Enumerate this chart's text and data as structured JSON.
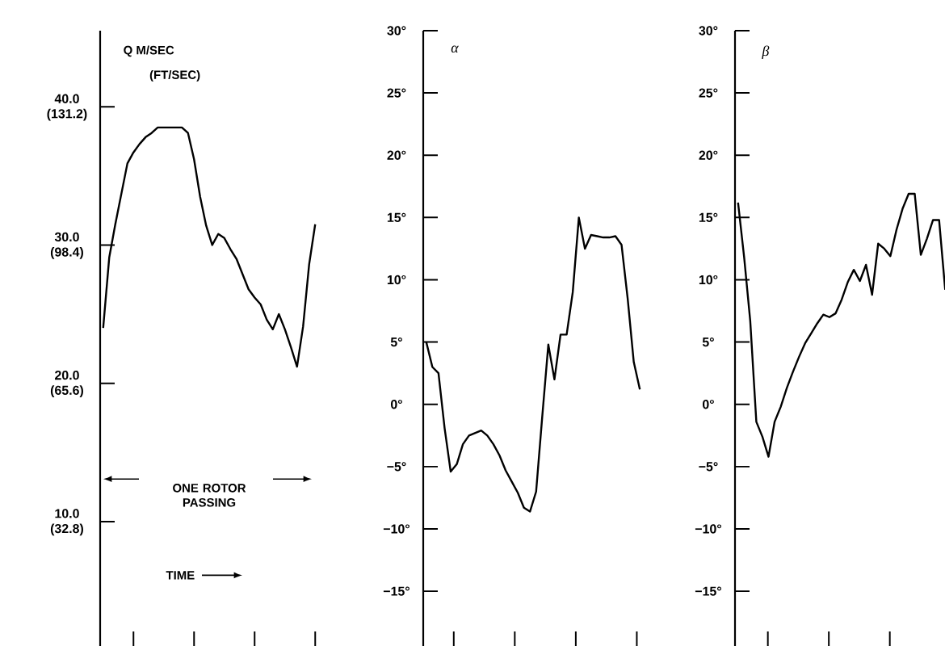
{
  "chart_data": [
    {
      "type": "line",
      "title": "Q  M/SEC",
      "y2label": "(FT/SEC)",
      "ylim": [
        1,
        45.5
      ],
      "yticks": [
        {
          "value": 10,
          "label": "10.0"
        },
        {
          "value": 20,
          "label": "20.0"
        },
        {
          "value": 30,
          "label": "30.0"
        },
        {
          "value": 40,
          "label": "40.0"
        }
      ],
      "y2lim": [
        3.28,
        149.24
      ],
      "y2ticks": [
        {
          "value": 32.8,
          "label": "(32.8)"
        },
        {
          "value": 65.6,
          "label": "(65.6)"
        },
        {
          "value": 98.4,
          "label": "(98.4)"
        },
        {
          "value": 131.2,
          "label": "(131.2)"
        }
      ],
      "annotations": [
        "ONE ROTOR PASSING",
        "TIME"
      ],
      "categories": [
        null,
        null,
        null,
        null,
        null,
        null,
        null,
        null,
        null,
        null,
        null,
        null,
        null,
        null,
        null,
        null,
        null,
        null,
        null,
        null,
        null,
        null,
        null,
        null,
        null,
        null,
        null,
        null,
        null,
        null,
        null,
        null,
        null,
        null,
        null,
        null
      ],
      "series": [
        {
          "color": "#000000",
          "values": [
            24.0,
            29.1,
            31.5,
            33.7,
            35.9,
            36.7,
            37.3,
            37.8,
            38.1,
            38.5,
            38.5,
            38.5,
            38.5,
            38.5,
            38.1,
            36.2,
            33.5,
            31.4,
            30.0,
            30.8,
            30.5,
            29.7,
            29.0,
            27.9,
            26.8,
            26.2,
            25.7,
            24.6,
            23.9,
            25.0,
            23.9,
            22.6,
            21.2,
            24.1,
            28.6,
            31.5
          ]
        }
      ]
    },
    {
      "type": "line",
      "ylabel": "α",
      "ylim": [
        -19.4,
        30
      ],
      "yticks": [
        {
          "value": -15,
          "label": "−15°"
        },
        {
          "value": -10,
          "label": "−10°"
        },
        {
          "value": -5,
          "label": "−5°"
        },
        {
          "value": 0,
          "label": "0°"
        },
        {
          "value": 5,
          "label": "5°"
        },
        {
          "value": 10,
          "label": "10°"
        },
        {
          "value": 15,
          "label": "15°"
        },
        {
          "value": 20,
          "label": "20°"
        },
        {
          "value": 25,
          "label": "25°"
        },
        {
          "value": 30,
          "label": "30°"
        }
      ],
      "categories": [
        null,
        null,
        null,
        null,
        null,
        null,
        null,
        null,
        null,
        null,
        null,
        null,
        null,
        null,
        null,
        null,
        null,
        null,
        null,
        null,
        null,
        null,
        null,
        null,
        null,
        null,
        null,
        null,
        null,
        null,
        null,
        null,
        null,
        null,
        null,
        null
      ],
      "series": [
        {
          "color": "#000000",
          "values": [
            5.0,
            3.0,
            2.5,
            -1.9,
            -5.4,
            -4.8,
            -3.2,
            -2.5,
            -2.3,
            -2.1,
            -2.5,
            -3.2,
            -4.1,
            -5.3,
            -6.2,
            -7.1,
            -8.3,
            -8.6,
            -7.0,
            -1.0,
            4.8,
            2.0,
            5.6,
            5.6,
            9.0,
            15.0,
            12.5,
            13.6,
            13.5,
            13.4,
            13.4,
            13.5,
            12.8,
            8.5,
            3.4,
            1.2
          ]
        }
      ]
    },
    {
      "type": "line",
      "ylabel": "β",
      "ylim": [
        -19.4,
        30
      ],
      "yticks": [
        {
          "value": -15,
          "label": "−15°"
        },
        {
          "value": -10,
          "label": "−10°"
        },
        {
          "value": -5,
          "label": "−5°"
        },
        {
          "value": 0,
          "label": "0°"
        },
        {
          "value": 5,
          "label": "5°"
        },
        {
          "value": 10,
          "label": "10°"
        },
        {
          "value": 15,
          "label": "15°"
        },
        {
          "value": 20,
          "label": "20°"
        },
        {
          "value": 25,
          "label": "25°"
        },
        {
          "value": 30,
          "label": "30°"
        }
      ],
      "categories": [
        null,
        null,
        null,
        null,
        null,
        null,
        null,
        null,
        null,
        null,
        null,
        null,
        null,
        null,
        null,
        null,
        null,
        null,
        null,
        null,
        null,
        null,
        null,
        null,
        null,
        null,
        null,
        null,
        null,
        null,
        null,
        null,
        null,
        null,
        null
      ],
      "series": [
        {
          "color": "#000000",
          "values": [
            16.2,
            11.8,
            6.7,
            -1.4,
            -2.6,
            -4.2,
            -1.4,
            -0.2,
            1.3,
            2.6,
            3.8,
            4.9,
            5.7,
            6.5,
            7.2,
            7.0,
            7.3,
            8.4,
            9.8,
            10.8,
            9.9,
            11.2,
            8.8,
            12.9,
            12.5,
            11.9,
            14.0,
            15.7,
            16.9,
            16.9,
            12.0,
            13.3,
            14.8,
            14.8,
            9.2
          ]
        }
      ]
    }
  ]
}
